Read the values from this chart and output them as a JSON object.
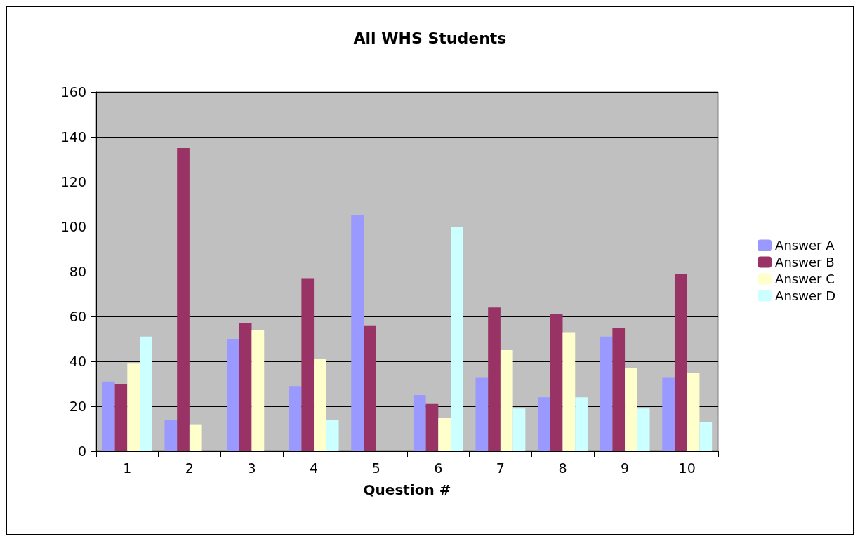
{
  "chart_data": {
    "type": "bar",
    "title": "All WHS Students",
    "xlabel": "Question #",
    "categories": [
      "1",
      "2",
      "3",
      "4",
      "5",
      "6",
      "7",
      "8",
      "9",
      "10"
    ],
    "series": [
      {
        "name": "Answer A",
        "color": "#9999ff",
        "values": [
          31,
          14,
          50,
          29,
          105,
          25,
          33,
          24,
          51,
          33
        ]
      },
      {
        "name": "Answer B",
        "color": "#993366",
        "values": [
          30,
          135,
          57,
          77,
          56,
          21,
          64,
          61,
          55,
          79
        ]
      },
      {
        "name": "Answer C",
        "color": "#ffffcc",
        "values": [
          39,
          12,
          54,
          41,
          0,
          15,
          45,
          53,
          37,
          35
        ]
      },
      {
        "name": "Answer D",
        "color": "#ccffff",
        "values": [
          51,
          0,
          0,
          14,
          0,
          100,
          19,
          24,
          19,
          13
        ]
      }
    ],
    "ylim": [
      0,
      160
    ],
    "yticks": [
      0,
      20,
      40,
      60,
      80,
      100,
      120,
      140,
      160
    ],
    "grid": "y",
    "legend": "right"
  }
}
